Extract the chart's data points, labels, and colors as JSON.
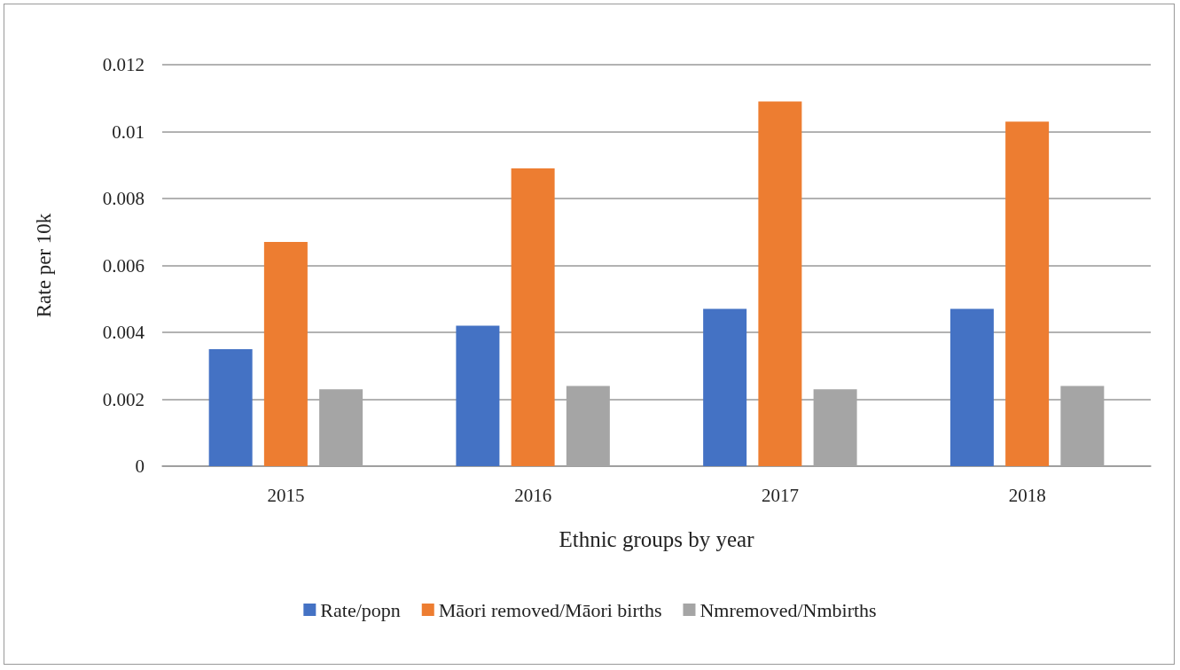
{
  "chart_data": {
    "type": "bar",
    "xlabel": "Ethnic groups by year",
    "ylabel": "Rate per 10k",
    "categories": [
      "2015",
      "2016",
      "2017",
      "2018"
    ],
    "series": [
      {
        "name": "Rate/popn",
        "color": "#4472c4",
        "values": [
          0.0035,
          0.0042,
          0.0047,
          0.0047
        ]
      },
      {
        "name": "Māori removed/Māori births",
        "color": "#ed7d31",
        "values": [
          0.0067,
          0.0089,
          0.0109,
          0.0103
        ]
      },
      {
        "name": "Nmremoved/Nmbirths",
        "color": "#a5a5a5",
        "values": [
          0.0023,
          0.0024,
          0.0023,
          0.0024
        ]
      }
    ],
    "ylim": [
      0,
      0.012
    ],
    "yticks": [
      0,
      0.002,
      0.004,
      0.006,
      0.008,
      0.01,
      0.012
    ],
    "grid": "y",
    "legend": "bottom"
  }
}
